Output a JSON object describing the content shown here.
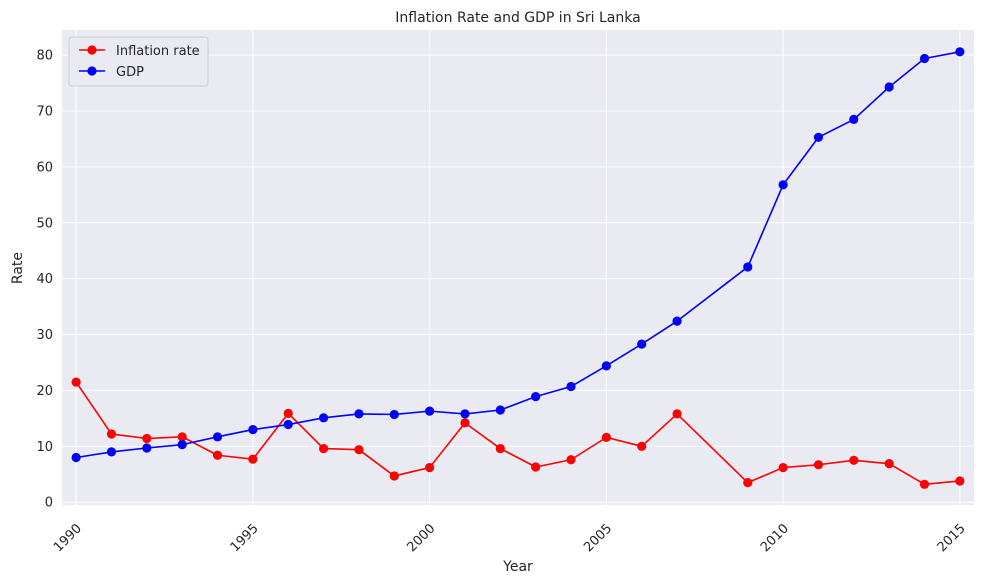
{
  "chart_data": {
    "type": "line",
    "title": "Inflation Rate and GDP in Sri Lanka",
    "xlabel": "Year",
    "ylabel": "Rate",
    "xlim": [
      1989.6,
      2015.4
    ],
    "ylim": [
      -0.5,
      84.5
    ],
    "xticks": [
      1990,
      1995,
      2000,
      2005,
      2010,
      2015
    ],
    "yticks": [
      0,
      10,
      20,
      30,
      40,
      50,
      60,
      70,
      80
    ],
    "grid": true,
    "legend_position": "top-left",
    "series": [
      {
        "name": "Inflation rate",
        "color": "#ff0000",
        "x": [
          1990,
          1991,
          1992,
          1993,
          1994,
          1995,
          1996,
          1997,
          1998,
          1999,
          2000,
          2001,
          2002,
          2003,
          2004,
          2005,
          2006,
          2007,
          2009,
          2010,
          2011,
          2012,
          2013,
          2014,
          2015
        ],
        "y": [
          21.5,
          12.2,
          11.4,
          11.7,
          8.4,
          7.7,
          15.9,
          9.6,
          9.4,
          4.7,
          6.2,
          14.2,
          9.6,
          6.3,
          7.6,
          11.6,
          10.0,
          15.8,
          3.5,
          6.2,
          6.7,
          7.5,
          6.9,
          3.2,
          3.8
        ]
      },
      {
        "name": "GDP",
        "color": "#0000ff",
        "x": [
          1990,
          1991,
          1992,
          1993,
          1994,
          1995,
          1996,
          1997,
          1998,
          1999,
          2000,
          2001,
          2002,
          2003,
          2004,
          2005,
          2006,
          2007,
          2009,
          2010,
          2011,
          2012,
          2013,
          2014,
          2015
        ],
        "y": [
          8.0,
          9.0,
          9.7,
          10.3,
          11.7,
          13.0,
          13.9,
          15.1,
          15.8,
          15.7,
          16.3,
          15.8,
          16.5,
          18.9,
          20.7,
          24.4,
          28.3,
          32.4,
          42.1,
          56.8,
          65.3,
          68.5,
          74.3,
          79.4,
          80.6
        ]
      }
    ]
  }
}
